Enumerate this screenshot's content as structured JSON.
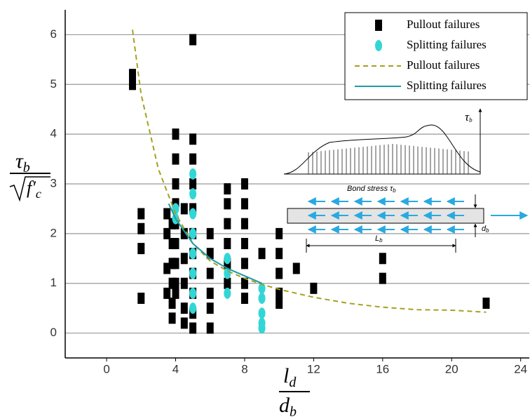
{
  "chart_data": {
    "type": "scatter",
    "xlim": [
      -2.4,
      24.5
    ],
    "ylim": [
      -0.5,
      6.5
    ],
    "xticks": [
      0,
      4,
      8,
      12,
      16,
      20,
      24
    ],
    "yticks": [
      0,
      1,
      2,
      3,
      4,
      5,
      6
    ],
    "grid": true,
    "x_label": {
      "top": "l",
      "top_sub": "d",
      "bottom": "d",
      "bottom_sub": "b"
    },
    "y_label": {
      "top": "τ",
      "top_sub": "b",
      "bottom": "f′",
      "bottom_sub": "c"
    },
    "legend": "upper right",
    "series": [
      {
        "name": "Pullout failures",
        "kind": "scatter",
        "marker": "square",
        "color": "#000000",
        "x": [
          1.5,
          1.5,
          2,
          2,
          2,
          2,
          3.5,
          3.5,
          3.5,
          3.5,
          3.8,
          3.8,
          3.8,
          3.8,
          3.8,
          3.8,
          4,
          4,
          4,
          4,
          4,
          4,
          4,
          4,
          4,
          4.5,
          4.5,
          4.5,
          4.5,
          4.5,
          4.5,
          5,
          5,
          5,
          5,
          5,
          5,
          5,
          5,
          5,
          5,
          5,
          6,
          6,
          6,
          6,
          6,
          6,
          7,
          7,
          7,
          7,
          7,
          7,
          8,
          8,
          8,
          8,
          8,
          8,
          8,
          9,
          10,
          10,
          10,
          10,
          10,
          11,
          12,
          16,
          16,
          22
        ],
        "values": [
          5.2,
          5.0,
          2.4,
          2.1,
          1.7,
          0.7,
          2.4,
          2.0,
          1.3,
          0.8,
          2.2,
          1.8,
          1.4,
          1.0,
          0.6,
          0.3,
          4.0,
          3.5,
          3.0,
          2.6,
          2.2,
          1.8,
          1.4,
          1.0,
          0.8,
          2.5,
          2.0,
          1.5,
          1.0,
          0.5,
          0.2,
          5.9,
          3.9,
          3.5,
          3.0,
          2.5,
          2.0,
          1.6,
          1.2,
          0.8,
          0.4,
          0.1,
          2.0,
          1.6,
          1.2,
          0.8,
          0.5,
          0.1,
          2.9,
          2.6,
          2.2,
          1.8,
          1.4,
          1.0,
          3.0,
          2.6,
          2.2,
          1.8,
          1.4,
          1.0,
          0.7,
          1.6,
          2.0,
          1.6,
          1.2,
          0.8,
          0.6,
          1.3,
          0.9,
          1.5,
          1.1,
          0.6
        ]
      },
      {
        "name": "Splitting failures",
        "kind": "scatter",
        "marker": "diamond",
        "color": "#33d6d6",
        "x": [
          4,
          4,
          5,
          5,
          5,
          5,
          5,
          5,
          5,
          5,
          7,
          7,
          7,
          9,
          9,
          9,
          9,
          9
        ],
        "values": [
          2.5,
          2.3,
          3.2,
          2.8,
          2.4,
          2.0,
          1.6,
          1.2,
          0.8,
          0.5,
          1.5,
          1.2,
          0.8,
          0.9,
          0.7,
          0.4,
          0.2,
          0.1
        ]
      },
      {
        "name": "Pullout failures",
        "kind": "line",
        "dash": true,
        "color": "#a6a020",
        "x": [
          1.5,
          2,
          3,
          4,
          5,
          6,
          7,
          8,
          9,
          10,
          12,
          14,
          16,
          18,
          20,
          22
        ],
        "values": [
          6.1,
          4.8,
          3.3,
          2.4,
          1.8,
          1.45,
          1.25,
          1.1,
          0.98,
          0.88,
          0.72,
          0.6,
          0.52,
          0.47,
          0.46,
          0.42
        ]
      },
      {
        "name": "Splitting failures",
        "kind": "line",
        "dash": false,
        "color": "#1f9aa8",
        "x": [
          3.6,
          4,
          5,
          6,
          7,
          8,
          9
        ],
        "values": [
          2.6,
          2.3,
          1.8,
          1.5,
          1.3,
          1.15,
          1.0
        ]
      }
    ]
  },
  "inset": {
    "stress": "τ",
    "stress_sub": "b",
    "bond_stress": "Bond stress τ",
    "bond_stress_sub": "b",
    "length": "L",
    "length_sub": "b",
    "diameter": "d",
    "diameter_sub": "b"
  }
}
